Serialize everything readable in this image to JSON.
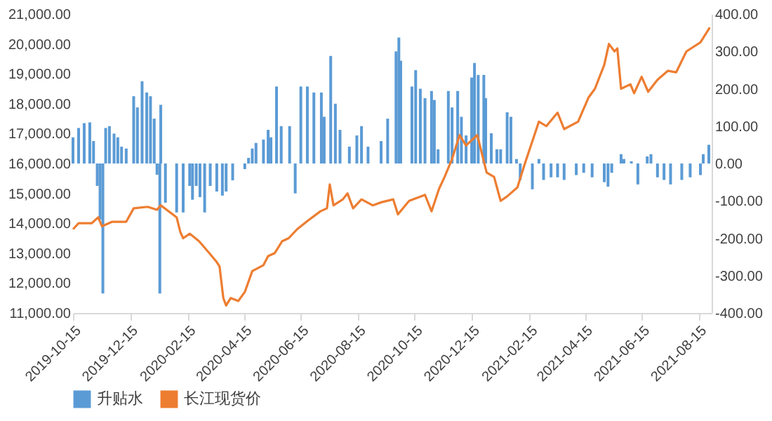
{
  "chart_data": {
    "type": "bar",
    "legend": "bottom",
    "xlim": [
      "2019-10-15",
      "2021-08-29"
    ],
    "xticks": [
      "2019-10-15",
      "2019-12-15",
      "2020-02-15",
      "2020-04-15",
      "2020-06-15",
      "2020-08-15",
      "2020-10-15",
      "2020-12-15",
      "2021-02-15",
      "2021-04-15",
      "2021-06-15",
      "2021-08-15"
    ],
    "ylim": [
      11000,
      21000
    ],
    "yticks": [
      {
        "value": 11000,
        "label": "11,000.00"
      },
      {
        "value": 12000,
        "label": "12,000.00"
      },
      {
        "value": 13000,
        "label": "13,000.00"
      },
      {
        "value": 14000,
        "label": "14,000.00"
      },
      {
        "value": 15000,
        "label": "15,000.00"
      },
      {
        "value": 16000,
        "label": "16,000.00"
      },
      {
        "value": 17000,
        "label": "17,000.00"
      },
      {
        "value": 18000,
        "label": "18,000.00"
      },
      {
        "value": 19000,
        "label": "19,000.00"
      },
      {
        "value": 20000,
        "label": "20,000.00"
      },
      {
        "value": 21000,
        "label": "21,000.00"
      }
    ],
    "y2lim": [
      -400,
      400
    ],
    "y2ticks": [
      {
        "value": -400,
        "label": "-400.00"
      },
      {
        "value": -300,
        "label": "-300.00"
      },
      {
        "value": -200,
        "label": "-200.00"
      },
      {
        "value": -100,
        "label": "-100.00"
      },
      {
        "value": 0,
        "label": "0.00"
      },
      {
        "value": 100,
        "label": "100.00"
      },
      {
        "value": 200,
        "label": "200.00"
      },
      {
        "value": 300,
        "label": "300.00"
      },
      {
        "value": 400,
        "label": "400.00"
      }
    ],
    "series": [
      {
        "name": "升贴水",
        "axis": "y2",
        "color": "#5b9bd5",
        "x": [
          "2019-10-15",
          "2019-10-21",
          "2019-10-27",
          "2019-11-02",
          "2019-11-06",
          "2019-11-10",
          "2019-11-13",
          "2019-11-16",
          "2019-11-19",
          "2019-11-23",
          "2019-11-28",
          "2019-12-02",
          "2019-12-06",
          "2019-12-11",
          "2019-12-19",
          "2019-12-23",
          "2019-12-28",
          "2020-01-02",
          "2020-01-06",
          "2020-01-10",
          "2020-01-13",
          "2020-01-16",
          "2020-01-17",
          "2020-01-22",
          "2020-02-03",
          "2020-02-10",
          "2020-02-17",
          "2020-02-20",
          "2020-02-24",
          "2020-02-28",
          "2020-03-04",
          "2020-03-10",
          "2020-03-17",
          "2020-03-23",
          "2020-03-27",
          "2020-04-03",
          "2020-04-16",
          "2020-04-20",
          "2020-04-24",
          "2020-04-28",
          "2020-05-06",
          "2020-05-11",
          "2020-05-14",
          "2020-05-20",
          "2020-05-25",
          "2020-06-03",
          "2020-06-09",
          "2020-06-15",
          "2020-06-22",
          "2020-06-29",
          "2020-07-07",
          "2020-07-10",
          "2020-07-17",
          "2020-07-22",
          "2020-07-27",
          "2020-08-06",
          "2020-08-14",
          "2020-08-19",
          "2020-08-26",
          "2020-09-09",
          "2020-09-16",
          "2020-09-25",
          "2020-09-28",
          "2020-09-30",
          "2020-10-12",
          "2020-10-16",
          "2020-10-21",
          "2020-10-26",
          "2020-11-02",
          "2020-11-05",
          "2020-11-09",
          "2020-11-20",
          "2020-11-24",
          "2020-11-30",
          "2020-12-04",
          "2020-12-09",
          "2020-12-15",
          "2020-12-18",
          "2020-12-22",
          "2020-12-28",
          "2020-12-30",
          "2021-01-05",
          "2021-01-11",
          "2021-01-15",
          "2021-01-22",
          "2021-01-26",
          "2021-02-01",
          "2021-02-05",
          "2021-02-18",
          "2021-02-25",
          "2021-03-02",
          "2021-03-10",
          "2021-03-17",
          "2021-03-24",
          "2021-04-06",
          "2021-04-14",
          "2021-04-23",
          "2021-05-06",
          "2021-05-10",
          "2021-05-14",
          "2021-05-24",
          "2021-05-27",
          "2021-06-04",
          "2021-06-11",
          "2021-06-21",
          "2021-06-25",
          "2021-07-02",
          "2021-07-09",
          "2021-07-16",
          "2021-07-28",
          "2021-08-06",
          "2021-08-17",
          "2021-08-20",
          "2021-08-26"
        ],
        "values": [
          70,
          95,
          108,
          110,
          60,
          -60,
          -150,
          -348,
          95,
          100,
          80,
          70,
          45,
          40,
          180,
          150,
          220,
          190,
          180,
          120,
          -30,
          -348,
          157,
          -105,
          -131,
          -131,
          -60,
          -97,
          -60,
          -90,
          -131,
          -60,
          -75,
          -86,
          -75,
          -45,
          -15,
          15,
          40,
          55,
          64,
          90,
          70,
          206,
          100,
          100,
          -80,
          206,
          206,
          190,
          190,
          125,
          288,
          160,
          90,
          45,
          75,
          100,
          45,
          60,
          120,
          300,
          337,
          275,
          206,
          250,
          200,
          175,
          194,
          170,
          38,
          194,
          150,
          194,
          125,
          75,
          230,
          269,
          237,
          237,
          175,
          81,
          38,
          38,
          137,
          125,
          12,
          -44,
          -69,
          12,
          -44,
          -37,
          -37,
          -44,
          -31,
          -25,
          -37,
          -50,
          -62,
          -25,
          25,
          12,
          6,
          -56,
          19,
          25,
          -37,
          -44,
          -56,
          -44,
          -37,
          -31,
          25,
          50
        ]
      },
      {
        "name": "长江现货价",
        "type": "line",
        "axis": "y",
        "color": "#ed7d31",
        "x": [
          "2019-10-15",
          "2019-10-21",
          "2019-11-04",
          "2019-11-11",
          "2019-11-15",
          "2019-11-26",
          "2019-12-11",
          "2019-12-19",
          "2020-01-03",
          "2020-01-13",
          "2020-01-17",
          "2020-02-03",
          "2020-02-07",
          "2020-02-10",
          "2020-02-17",
          "2020-02-27",
          "2020-03-09",
          "2020-03-17",
          "2020-03-20",
          "2020-03-24",
          "2020-03-27",
          "2020-04-01",
          "2020-04-09",
          "2020-04-16",
          "2020-04-24",
          "2020-05-06",
          "2020-05-11",
          "2020-05-18",
          "2020-05-26",
          "2020-06-02",
          "2020-06-11",
          "2020-06-23",
          "2020-07-06",
          "2020-07-13",
          "2020-07-16",
          "2020-07-20",
          "2020-07-30",
          "2020-08-04",
          "2020-08-10",
          "2020-08-19",
          "2020-08-31",
          "2020-09-09",
          "2020-09-22",
          "2020-09-27",
          "2020-10-09",
          "2020-10-26",
          "2020-11-02",
          "2020-11-10",
          "2020-11-16",
          "2020-11-24",
          "2020-12-02",
          "2020-12-09",
          "2020-12-21",
          "2020-12-31",
          "2021-01-08",
          "2021-01-15",
          "2021-01-22",
          "2021-02-02",
          "2021-02-10",
          "2021-02-25",
          "2021-03-05",
          "2021-03-17",
          "2021-03-24",
          "2021-04-08",
          "2021-04-19",
          "2021-04-26",
          "2021-05-06",
          "2021-05-11",
          "2021-05-17",
          "2021-05-20",
          "2021-05-24",
          "2021-06-03",
          "2021-06-07",
          "2021-06-15",
          "2021-06-22",
          "2021-07-02",
          "2021-07-13",
          "2021-07-22",
          "2021-08-02",
          "2021-08-17",
          "2021-08-27"
        ],
        "values": [
          13800,
          14000,
          14000,
          14200,
          13900,
          14050,
          14050,
          14500,
          14550,
          14450,
          14600,
          14200,
          13700,
          13500,
          13650,
          13400,
          13000,
          12700,
          12550,
          11500,
          11250,
          11500,
          11400,
          11700,
          12400,
          12600,
          12900,
          13000,
          13400,
          13500,
          13800,
          14100,
          14400,
          14500,
          15300,
          14600,
          14800,
          15000,
          14500,
          14800,
          14600,
          14700,
          14800,
          14300,
          14750,
          14950,
          14400,
          15150,
          15550,
          16150,
          16950,
          16600,
          16950,
          15700,
          15550,
          14750,
          14900,
          15200,
          16000,
          17400,
          17250,
          17700,
          17150,
          17400,
          18200,
          18500,
          19300,
          20000,
          19750,
          19850,
          18500,
          18650,
          18350,
          18900,
          18400,
          18800,
          19100,
          19050,
          19750,
          20050,
          20550
        ]
      }
    ]
  }
}
